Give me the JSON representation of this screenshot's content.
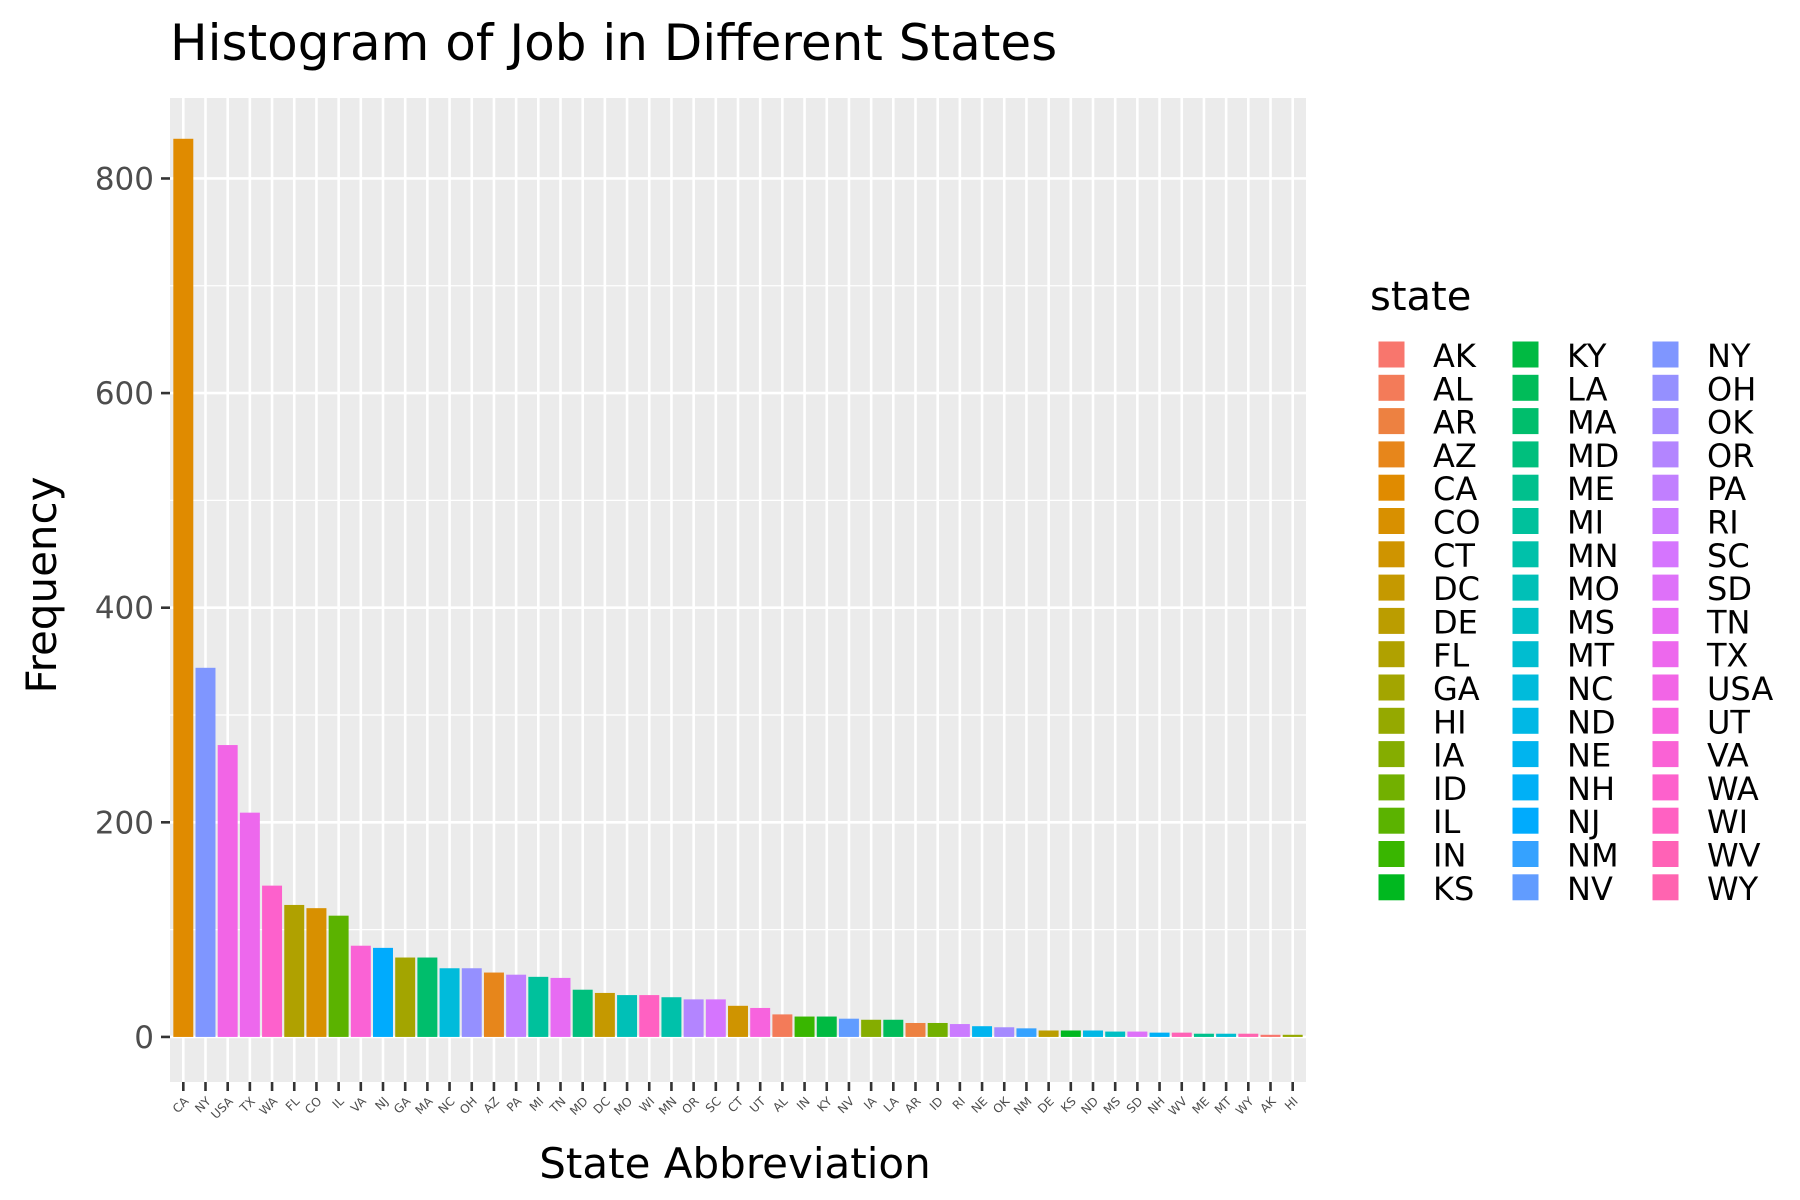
{
  "chart_data": {
    "type": "bar",
    "title": "Histogram of Job in Different States",
    "xlabel": "State Abbreviation",
    "ylabel": "Frequency",
    "ylim": [
      -42,
      875
    ],
    "yticks": [
      0,
      200,
      400,
      600,
      800
    ],
    "grid": true,
    "legend_position": "right",
    "legend_title": "state",
    "categories": [
      "CA",
      "NY",
      "USA",
      "TX",
      "WA",
      "FL",
      "CO",
      "IL",
      "VA",
      "NJ",
      "GA",
      "MA",
      "NC",
      "OH",
      "AZ",
      "PA",
      "MI",
      "TN",
      "MD",
      "DC",
      "MO",
      "WI",
      "MN",
      "OR",
      "SC",
      "CT",
      "UT",
      "AL",
      "IN",
      "KY",
      "NV",
      "IA",
      "LA",
      "AR",
      "ID",
      "RI",
      "NE",
      "OK",
      "NM",
      "DE",
      "KS",
      "ND",
      "MS",
      "SD",
      "NH",
      "WV",
      "ME",
      "MT",
      "WY",
      "AK",
      "HI"
    ],
    "values": [
      837,
      344,
      272,
      209,
      141,
      123,
      120,
      113,
      85,
      83,
      74,
      74,
      64,
      64,
      60,
      58,
      56,
      55,
      44,
      41,
      39,
      39,
      37,
      35,
      35,
      29,
      27,
      21,
      19,
      19,
      17,
      16,
      16,
      13,
      13,
      12,
      10,
      9,
      8,
      6,
      6,
      6,
      5,
      5,
      4,
      4,
      3,
      3,
      3,
      2,
      2
    ],
    "legend_states": [
      "AK",
      "AL",
      "AR",
      "AZ",
      "CA",
      "CO",
      "CT",
      "DC",
      "DE",
      "FL",
      "GA",
      "HI",
      "IA",
      "ID",
      "IL",
      "IN",
      "KS",
      "KY",
      "LA",
      "MA",
      "MD",
      "ME",
      "MI",
      "MN",
      "MO",
      "MS",
      "MT",
      "NC",
      "ND",
      "NE",
      "NH",
      "NJ",
      "NM",
      "NV",
      "NY",
      "OH",
      "OK",
      "OR",
      "PA",
      "RI",
      "SC",
      "SD",
      "TN",
      "TX",
      "USA",
      "UT",
      "VA",
      "WA",
      "WI",
      "WV",
      "WY"
    ],
    "legend_colors": [
      "#F8766D",
      "#F37B59",
      "#ED8141",
      "#E7861B",
      "#E08B00",
      "#D89000",
      "#CF9400",
      "#C59900",
      "#BB9D00",
      "#B0A100",
      "#A3A500",
      "#95A900",
      "#85AD00",
      "#72B000",
      "#5BB300",
      "#39B600",
      "#00B81F",
      "#00BA42",
      "#00BC59",
      "#00BE6C",
      "#00BF7D",
      "#00C08D",
      "#00C19C",
      "#00C1AA",
      "#00C0B7",
      "#00BFC4",
      "#00BDD0",
      "#00BBDB",
      "#00B8E5",
      "#00B4EF",
      "#00B0F6",
      "#00ABFD",
      "#35A2FF",
      "#619CFF",
      "#7F96FF",
      "#9590FF",
      "#A58AFF",
      "#B385FF",
      "#C17FFF",
      "#CB7BFF",
      "#D575FE",
      "#DE71F9",
      "#E76BF3",
      "#ED68ED",
      "#F265E6",
      "#F763DE",
      "#FA62D5",
      "#FD61CC",
      "#FF61C2",
      "#FF62B6",
      "#FF64B0"
    ]
  }
}
